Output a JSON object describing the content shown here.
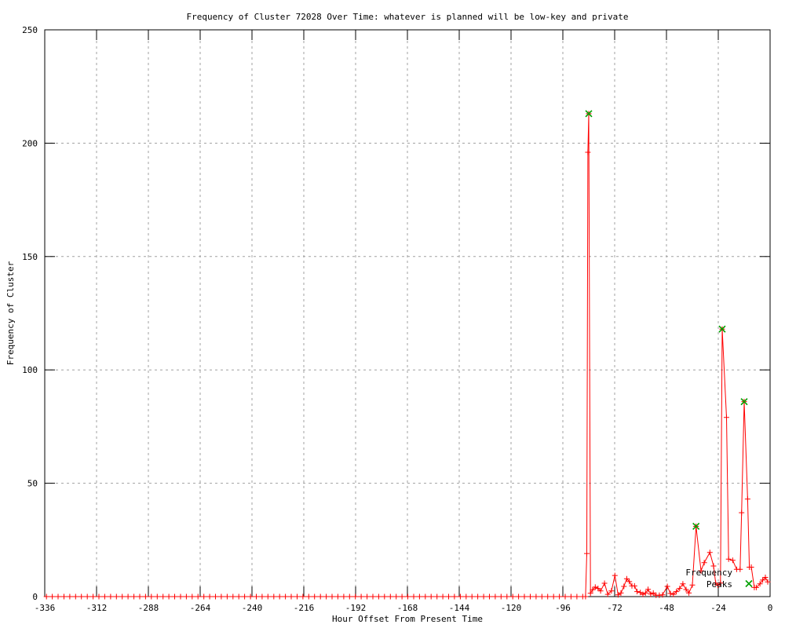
{
  "title": "Frequency of Cluster 72028 Over Time: whatever is planned will be low-key and private",
  "colors": {
    "line": "#ff0000",
    "peaks": "#00a000",
    "grid": "#a0a0a0",
    "axis": "#000000",
    "background": "#ffffff"
  },
  "chart_data": {
    "type": "line",
    "title": "Frequency of Cluster 72028 Over Time: whatever is planned will be low-key and private",
    "xlabel": "Hour Offset From Present Time",
    "ylabel": "Frequency of Cluster",
    "xlim": [
      -336,
      0
    ],
    "ylim": [
      0,
      250
    ],
    "xticks": [
      -336,
      -312,
      -288,
      -264,
      -240,
      -216,
      -192,
      -168,
      -144,
      -120,
      -96,
      -72,
      -48,
      -24,
      0
    ],
    "yticks": [
      0,
      50,
      100,
      150,
      200,
      250
    ],
    "grid": true,
    "legend_position": "bottom-right",
    "series": [
      {
        "name": "cluster-frequency",
        "in_legend": false,
        "color": "#ff0000",
        "marker": "plus",
        "baseline": {
          "from": -335.2,
          "to": -85.6,
          "step": 2.7,
          "value": 0
        },
        "points": [
          [
            -85.5,
            0
          ],
          [
            -84.9,
            19
          ],
          [
            -84.4,
            196
          ],
          [
            -84.0,
            213
          ],
          [
            -83.2,
            1.5
          ],
          [
            -82.2,
            3
          ],
          [
            -81.0,
            4.2
          ],
          [
            -79.7,
            3.6
          ],
          [
            -78.5,
            2.5
          ],
          [
            -76.7,
            5.9
          ],
          [
            -75.2,
            1
          ],
          [
            -73.5,
            2.5
          ],
          [
            -71.9,
            9.3
          ],
          [
            -70.4,
            0.8
          ],
          [
            -69.1,
            1.6
          ],
          [
            -67.7,
            4.5
          ],
          [
            -66.4,
            7.9
          ],
          [
            -65.2,
            6.6
          ],
          [
            -64.0,
            4.7
          ],
          [
            -62.8,
            4.7
          ],
          [
            -61.6,
            2.2
          ],
          [
            -60.1,
            1.8
          ],
          [
            -58.9,
            1.0
          ],
          [
            -57.7,
            1.6
          ],
          [
            -56.5,
            3.2
          ],
          [
            -55.3,
            1.1
          ],
          [
            -54.1,
            1.6
          ],
          [
            -52.8,
            0.6
          ],
          [
            -51.3,
            0.6
          ],
          [
            -49.8,
            0.8
          ],
          [
            -47.6,
            4.5
          ],
          [
            -46.2,
            1.4
          ],
          [
            -44.8,
            1.0
          ],
          [
            -43.4,
            2.2
          ],
          [
            -41.9,
            3.6
          ],
          [
            -40.4,
            5.6
          ],
          [
            -38.9,
            3.1
          ],
          [
            -37.6,
            1.6
          ],
          [
            -36.0,
            5.1
          ],
          [
            -34.3,
            31
          ],
          [
            -32.0,
            11.4
          ],
          [
            -30.5,
            15
          ],
          [
            -27.9,
            19.5
          ],
          [
            -26.2,
            13.5
          ],
          [
            -25.2,
            6
          ],
          [
            -24.2,
            5
          ],
          [
            -23.0,
            6
          ],
          [
            -22.2,
            118
          ],
          [
            -20.2,
            79
          ],
          [
            -19.2,
            16.5
          ],
          [
            -17.3,
            16
          ],
          [
            -15.5,
            12
          ],
          [
            -13.9,
            12
          ],
          [
            -13.2,
            37
          ],
          [
            -12.0,
            86
          ],
          [
            -10.4,
            43
          ],
          [
            -9.6,
            13
          ],
          [
            -8.7,
            13
          ],
          [
            -7.3,
            4
          ],
          [
            -6.4,
            4
          ],
          [
            -4.7,
            5.6
          ],
          [
            -3.4,
            7.3
          ],
          [
            -2.2,
            8.5
          ],
          [
            -1.1,
            6.5
          ]
        ]
      },
      {
        "name": "Frequency Peaks",
        "in_legend": true,
        "legend_label_lines": [
          "Frequency",
          "Peaks"
        ],
        "color": "#00a000",
        "marker": "cross",
        "points": [
          [
            -84.0,
            213
          ],
          [
            -34.3,
            31
          ],
          [
            -22.2,
            118
          ],
          [
            -12.0,
            86
          ]
        ]
      }
    ]
  }
}
